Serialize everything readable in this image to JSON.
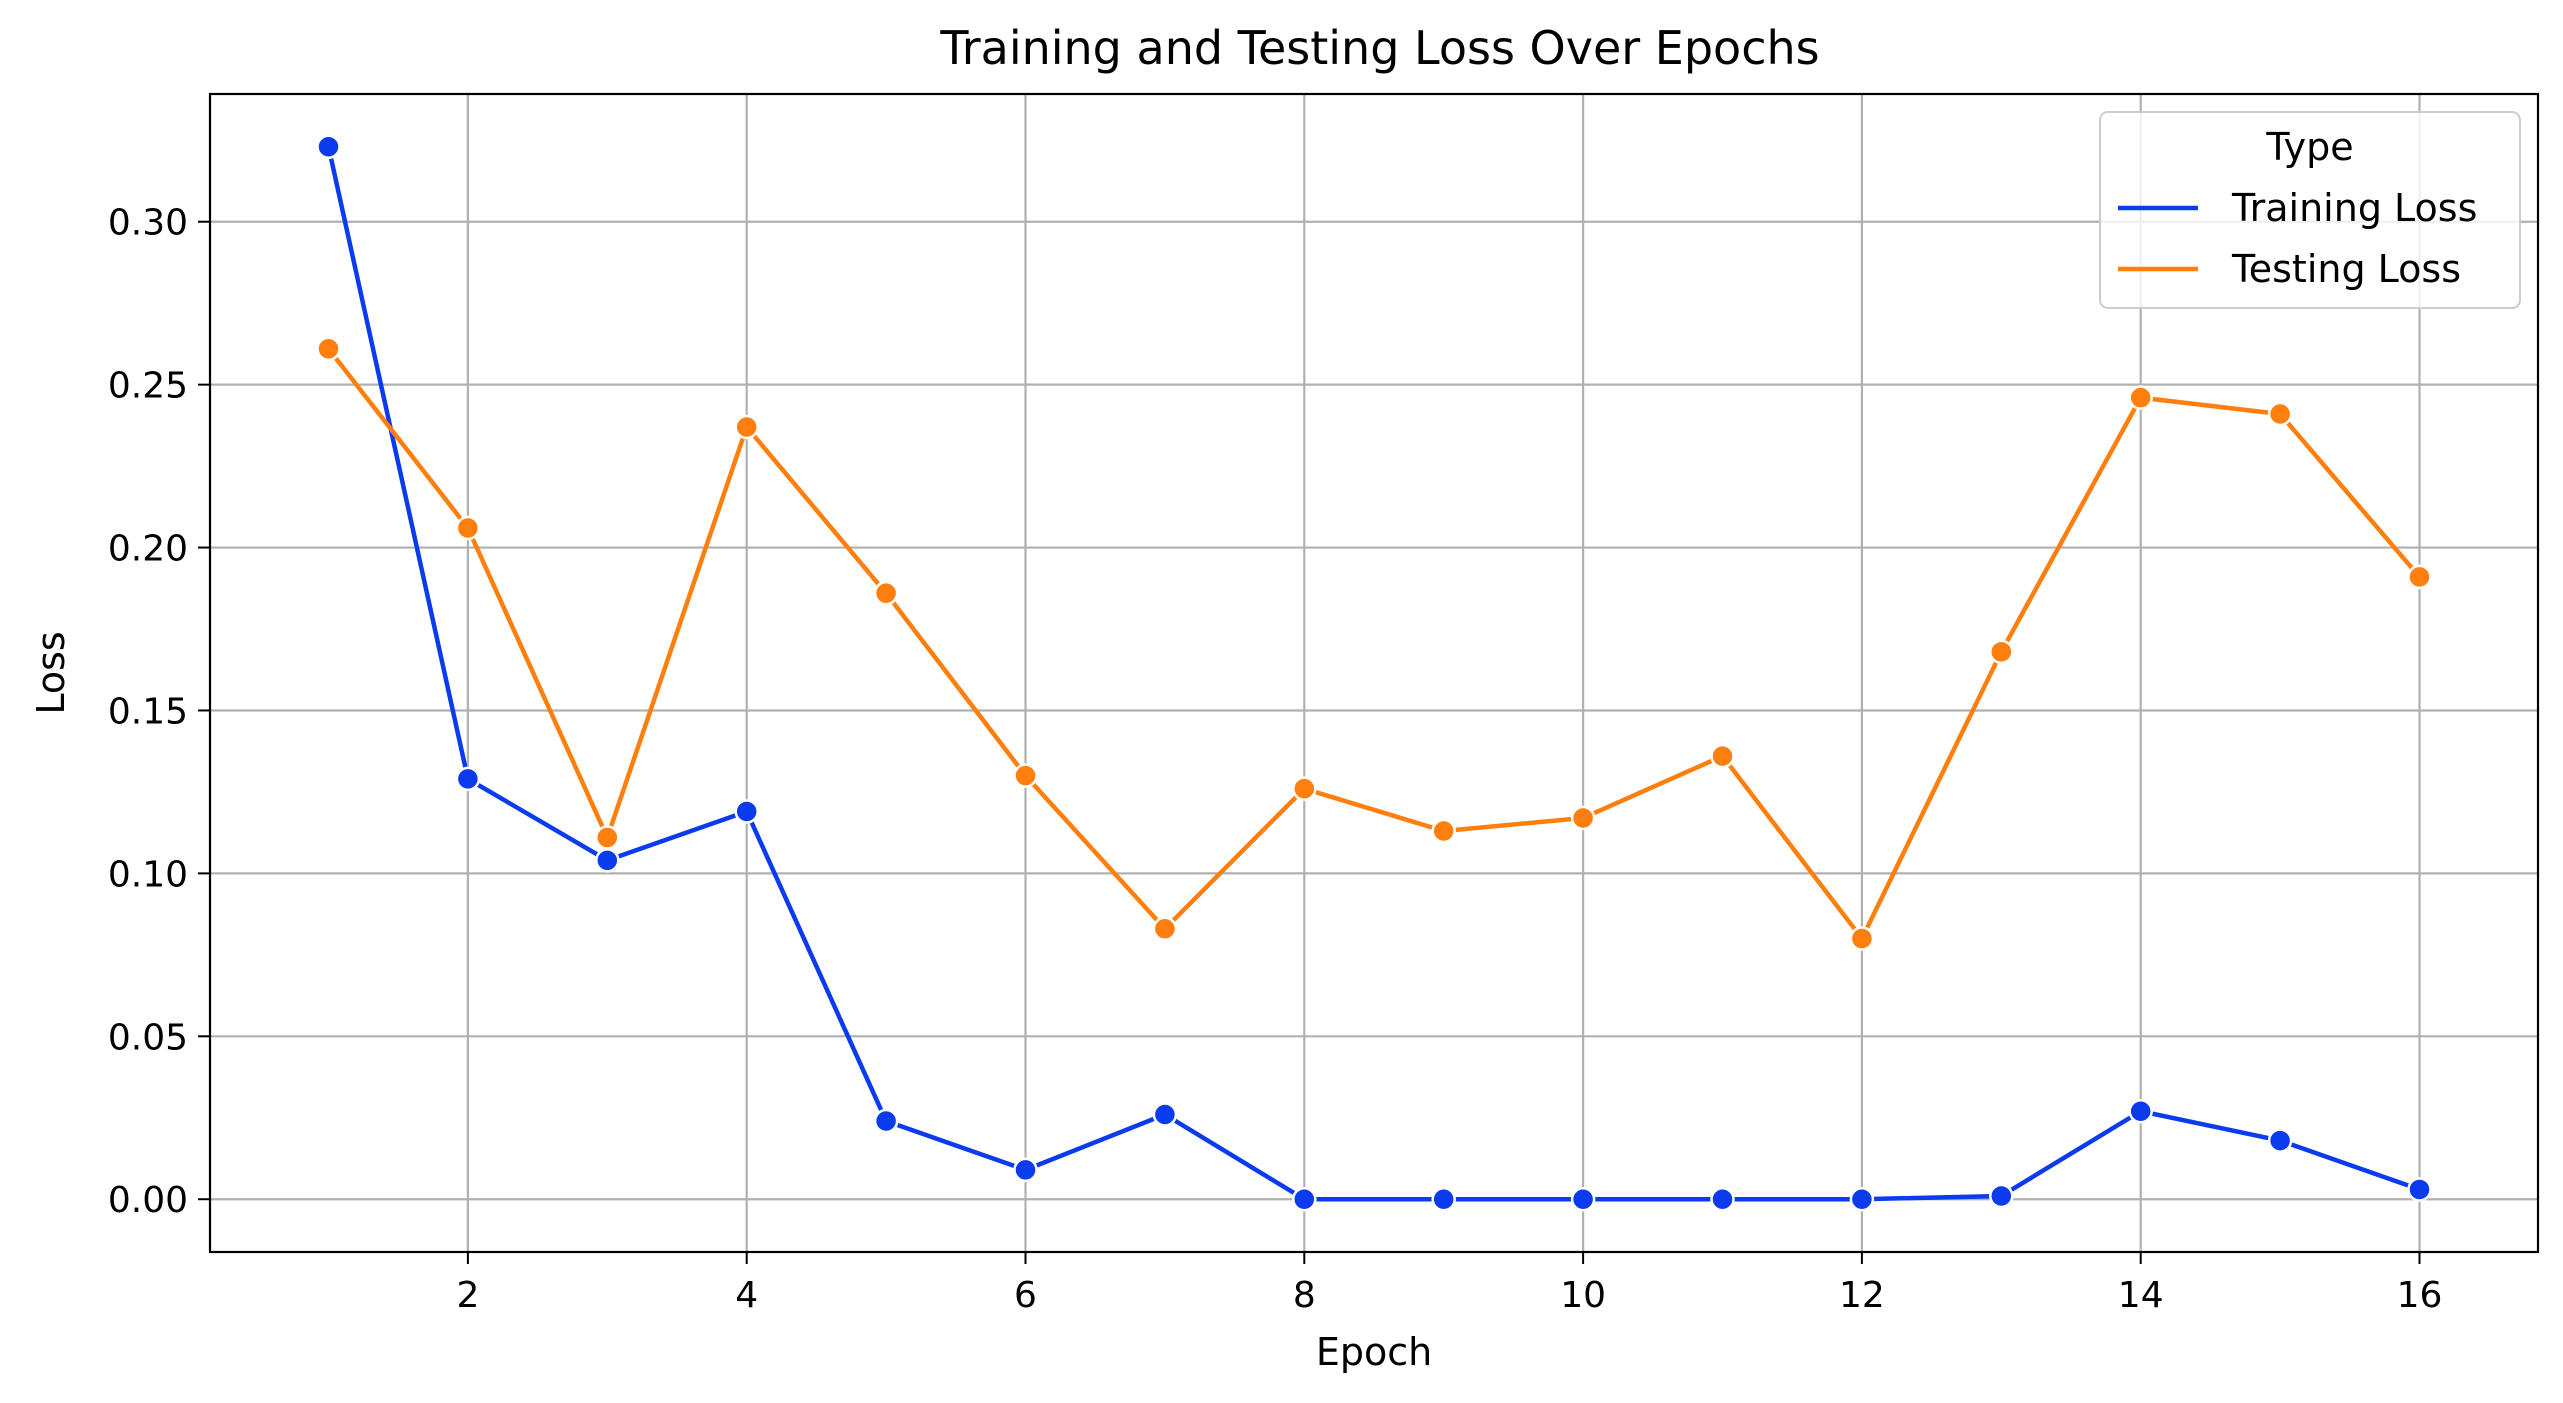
{
  "chart_data": {
    "type": "line",
    "title": "Training and Testing Loss Over Epochs",
    "xlabel": "Epoch",
    "ylabel": "Loss",
    "xlim": [
      0.15,
      16.85
    ],
    "ylim": [
      -0.0162,
      0.3392
    ],
    "xticks": [
      2,
      4,
      6,
      8,
      10,
      12,
      14,
      16
    ],
    "yticks": [
      0.0,
      0.05,
      0.1,
      0.15,
      0.2,
      0.25,
      0.3
    ],
    "ytick_labels": [
      "0.00",
      "0.05",
      "0.10",
      "0.15",
      "0.20",
      "0.25",
      "0.30"
    ],
    "grid": true,
    "legend": {
      "title": "Type",
      "position": "top-right"
    },
    "x": [
      1,
      2,
      3,
      4,
      5,
      6,
      7,
      8,
      9,
      10,
      11,
      12,
      13,
      14,
      15,
      16
    ],
    "series": [
      {
        "name": "Training Loss",
        "color": "#0b3bef",
        "values": [
          0.323,
          0.129,
          0.104,
          0.119,
          0.024,
          0.009,
          0.026,
          0.0,
          0.0,
          0.0,
          0.0,
          0.0,
          0.001,
          0.027,
          0.018,
          0.003
        ]
      },
      {
        "name": "Testing Loss",
        "color": "#ff7f0e",
        "values": [
          0.261,
          0.206,
          0.111,
          0.237,
          0.186,
          0.13,
          0.083,
          0.126,
          0.113,
          0.117,
          0.136,
          0.08,
          0.168,
          0.246,
          0.241,
          0.191
        ]
      }
    ]
  }
}
